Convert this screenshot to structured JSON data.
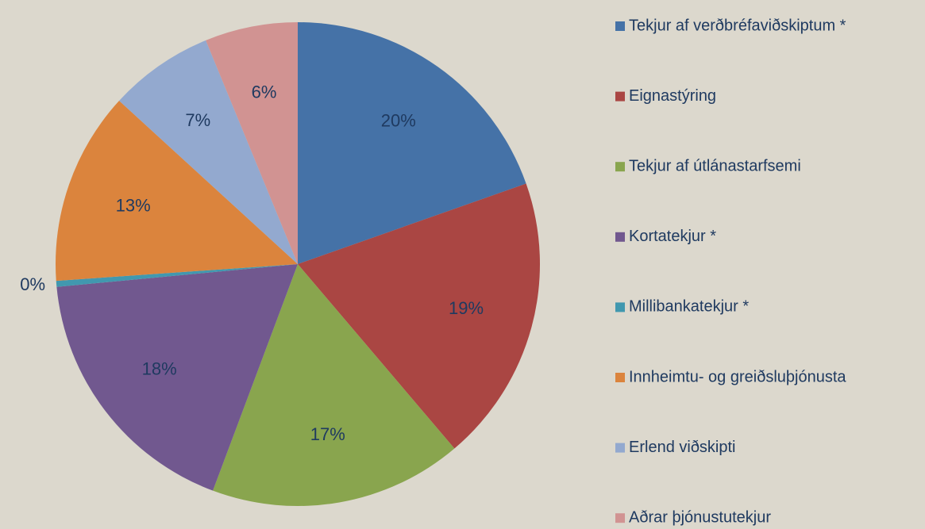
{
  "chart_data": {
    "type": "pie",
    "categories": [
      "Tekjur af verðbréfaviðskiptum *",
      "Eignastýring",
      "Tekjur af útlánastarfsemi",
      "Kortatekjur *",
      "Millibankatekjur *",
      "Innheimtu- og greiðsluþjónusta",
      "Erlend viðskipti",
      "Aðrar þjónustutekjur"
    ],
    "values": [
      19.6,
      19.2,
      16.9,
      17.8,
      0.4,
      12.9,
      7.0,
      6.2
    ],
    "value_labels": [
      "20%",
      "19%",
      "17%",
      "18%",
      "0%",
      "13%",
      "7%",
      "6%"
    ],
    "colors": [
      "#4572a7",
      "#aa4643",
      "#89a54e",
      "#71588f",
      "#4198af",
      "#db843d",
      "#93a9cf",
      "#d19392"
    ],
    "legend": "right"
  }
}
